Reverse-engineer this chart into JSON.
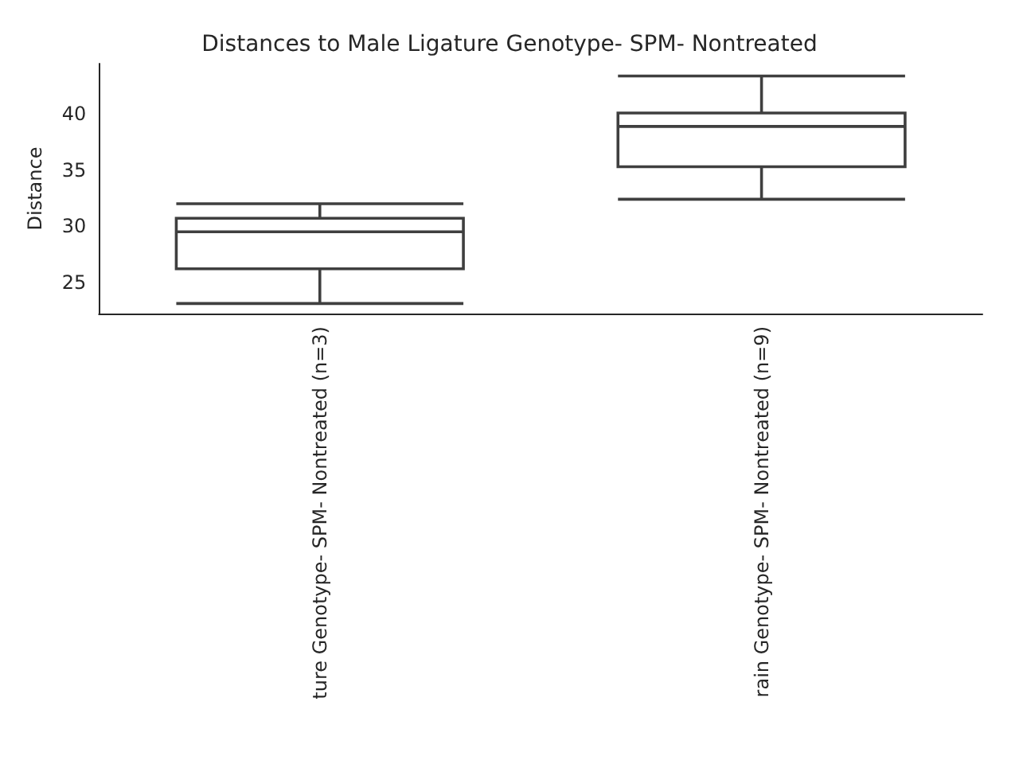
{
  "chart_data": {
    "type": "box",
    "title": "Distances to Male Ligature Genotype- SPM- Nontreated",
    "ylabel": "Distance",
    "categories": [
      "ture Genotype- SPM- Nontreated (n=3)",
      "rain Genotype- SPM- Nontreated (n=9)"
    ],
    "boxes": [
      {
        "low": 23.1,
        "q1": 26.2,
        "median": 29.5,
        "q3": 30.7,
        "high": 32.0
      },
      {
        "low": 32.4,
        "q1": 35.3,
        "median": 38.9,
        "q3": 40.1,
        "high": 43.4
      }
    ],
    "color": "#3f3f3f",
    "ylim": [
      22.2,
      44.5
    ],
    "yticks": [
      25,
      30,
      35,
      40
    ],
    "grid": false
  }
}
